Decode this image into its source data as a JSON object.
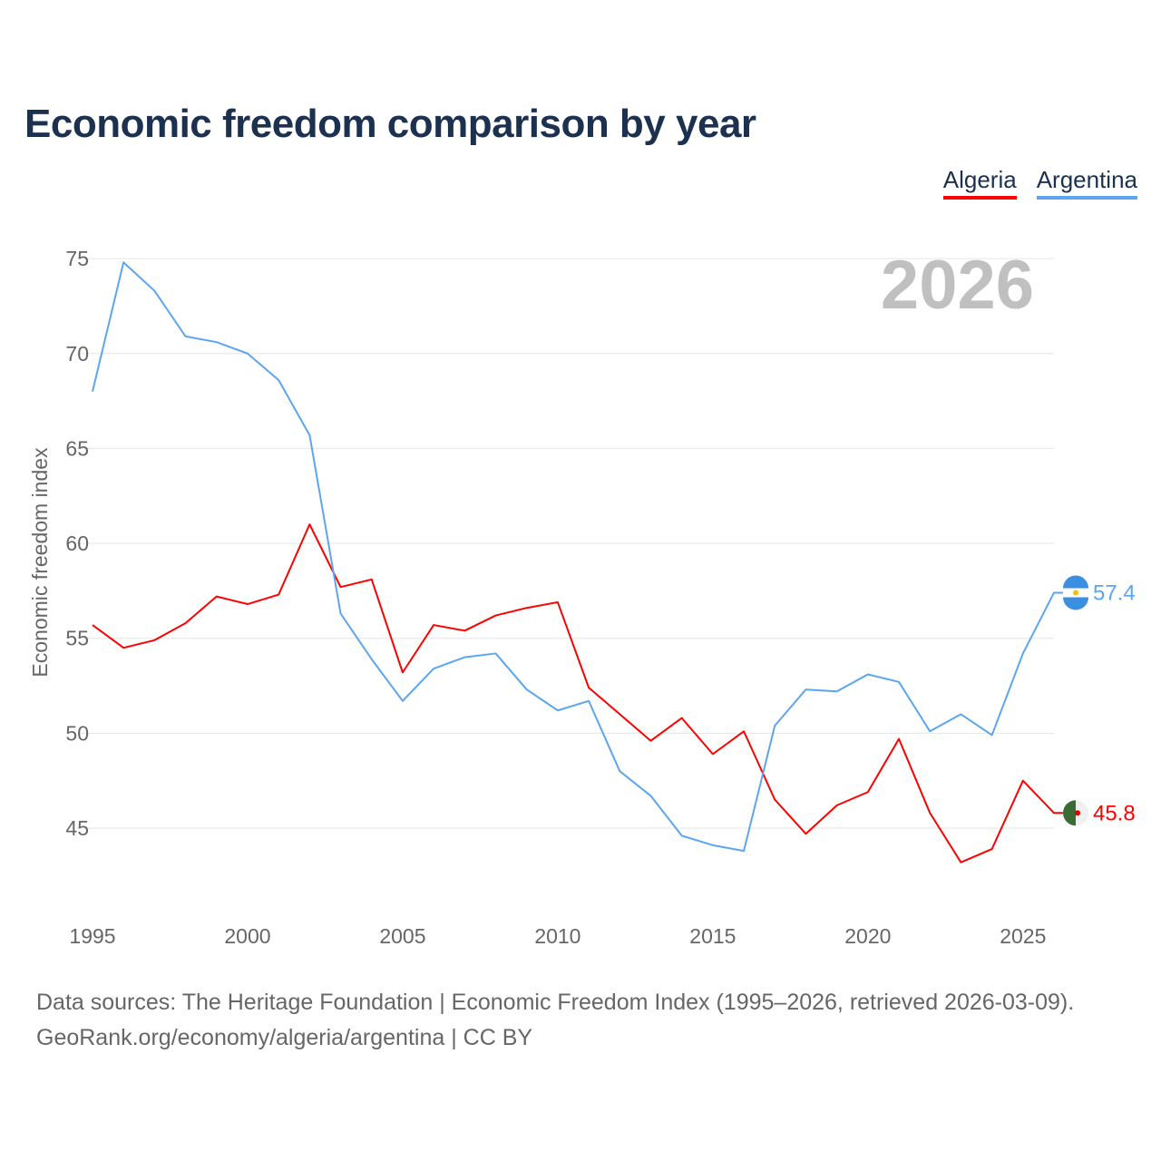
{
  "title": "Economic freedom comparison by year",
  "source_lines": [
    "Data sources: The Heritage Foundation | Economic Freedom Index (1995–2026, retrieved 2026-03-09).",
    "GeoRank.org/economy/algeria/argentina | CC BY"
  ],
  "chart_data": {
    "type": "line",
    "title": "Economic freedom comparison by year",
    "xlabel": "",
    "ylabel": "Economic freedom index",
    "year_watermark": "2026",
    "xlim": [
      1995,
      2026
    ],
    "ylim": [
      41.5,
      77
    ],
    "xticks": [
      1995,
      2000,
      2005,
      2010,
      2015,
      2020,
      2025
    ],
    "yticks": [
      45,
      50,
      55,
      60,
      65,
      70,
      75
    ],
    "grid": true,
    "legend_position": "top-right",
    "x": [
      1995,
      1996,
      1997,
      1998,
      1999,
      2000,
      2001,
      2002,
      2003,
      2004,
      2005,
      2006,
      2007,
      2008,
      2009,
      2010,
      2011,
      2012,
      2013,
      2014,
      2015,
      2016,
      2017,
      2018,
      2019,
      2020,
      2021,
      2022,
      2023,
      2024,
      2025,
      2026
    ],
    "series": [
      {
        "name": "Algeria",
        "color": "#ff0000",
        "end_label": "45.8",
        "flag_colors": [
          "#3a6b35",
          "#f0f0f0"
        ],
        "values": [
          55.7,
          54.5,
          54.9,
          55.8,
          57.2,
          56.8,
          57.3,
          61.0,
          57.7,
          58.1,
          53.2,
          55.7,
          55.4,
          56.2,
          56.6,
          56.9,
          52.4,
          51.0,
          49.6,
          50.8,
          48.9,
          50.1,
          46.5,
          44.7,
          46.2,
          46.9,
          49.7,
          45.8,
          43.2,
          43.9,
          47.5,
          45.8
        ]
      },
      {
        "name": "Argentina",
        "color": "#5ba6ee",
        "end_label": "57.4",
        "flag_colors": [
          "#3b8fe0",
          "#ffffff"
        ],
        "values": [
          68.0,
          74.8,
          73.3,
          70.9,
          70.6,
          70.0,
          68.6,
          65.7,
          56.3,
          53.9,
          51.7,
          53.4,
          54.0,
          54.2,
          52.3,
          51.2,
          51.7,
          48.0,
          46.7,
          44.6,
          44.1,
          43.8,
          50.4,
          52.3,
          52.2,
          53.1,
          52.7,
          50.1,
          51.0,
          49.9,
          54.2,
          57.4
        ]
      }
    ]
  }
}
